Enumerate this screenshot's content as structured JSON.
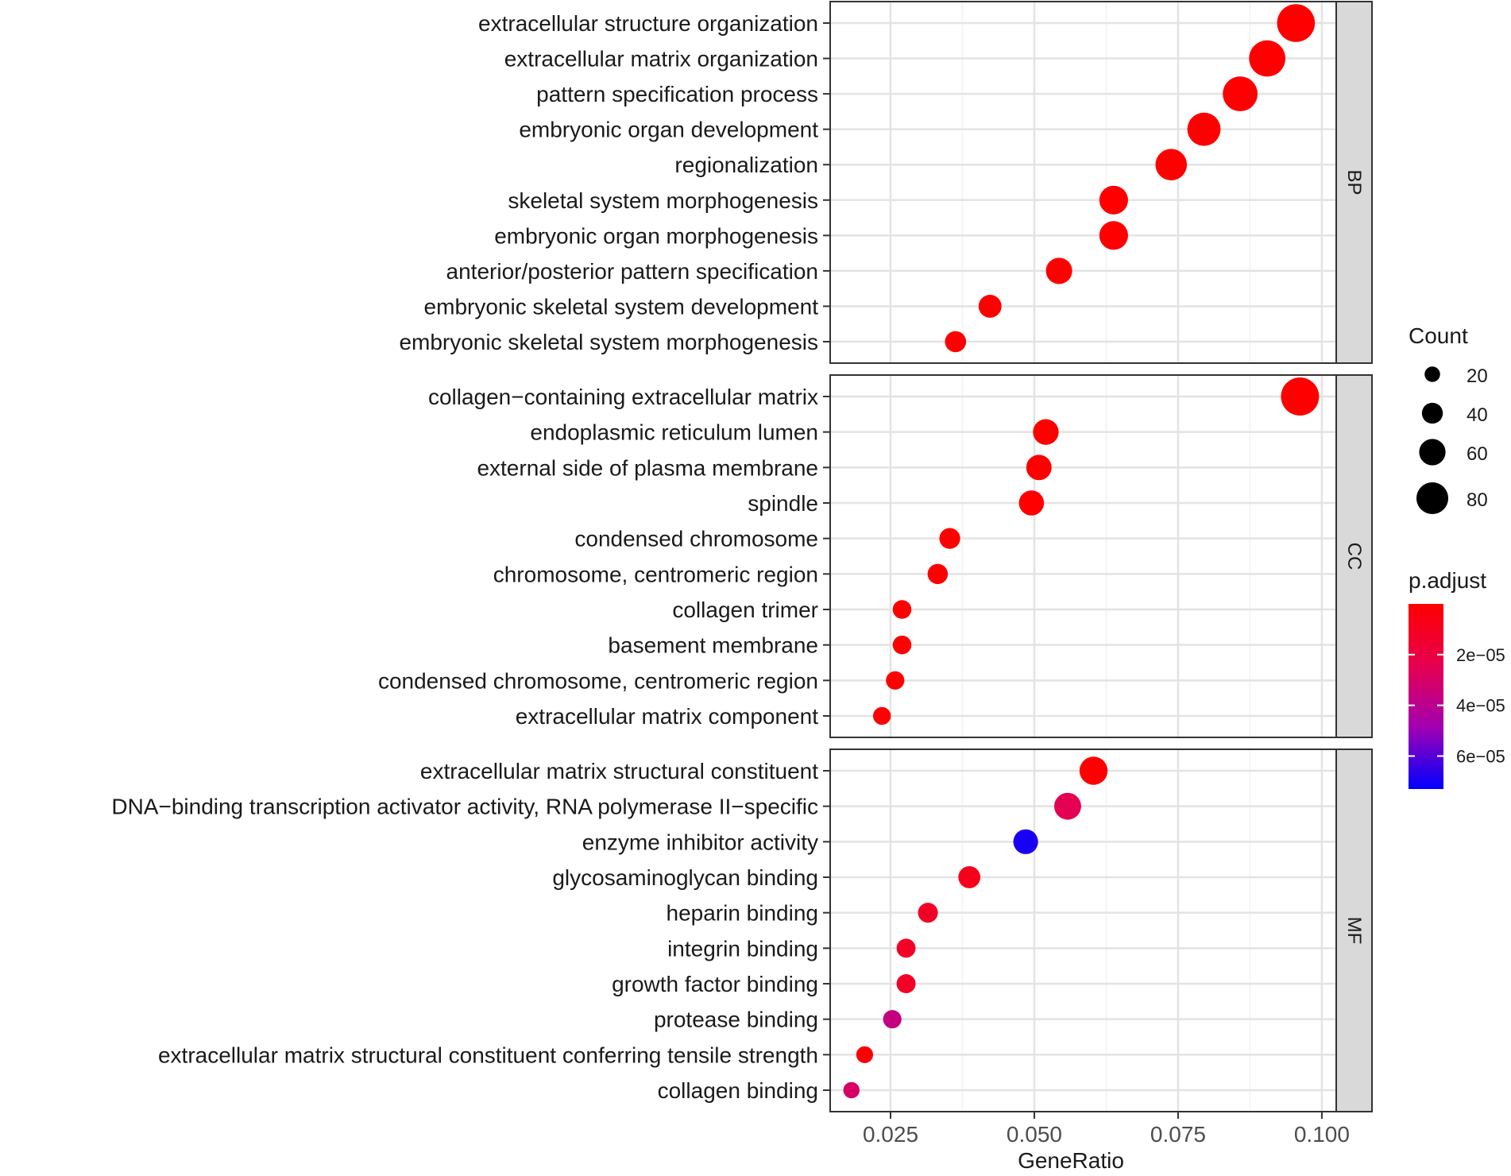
{
  "chart_data": {
    "type": "scatter",
    "xlabel": "GeneRatio",
    "xlim": [
      0.0145,
      0.1025
    ],
    "x_ticks": [
      0.025,
      0.05,
      0.075,
      0.1
    ],
    "x_tick_labels": [
      "0.025",
      "0.050",
      "0.075",
      "0.100"
    ],
    "panels": [
      {
        "name": "BP",
        "terms": [
          {
            "label": "extracellular structure organization",
            "gene_ratio": 0.0955,
            "count": 88,
            "p_adjust": 1e-12
          },
          {
            "label": "extracellular matrix organization",
            "gene_ratio": 0.0905,
            "count": 83,
            "p_adjust": 1e-12
          },
          {
            "label": "pattern specification process",
            "gene_ratio": 0.0858,
            "count": 78,
            "p_adjust": 1e-12
          },
          {
            "label": "embryonic organ development",
            "gene_ratio": 0.0795,
            "count": 73,
            "p_adjust": 1e-12
          },
          {
            "label": "regionalization",
            "gene_ratio": 0.0738,
            "count": 67,
            "p_adjust": 1e-12
          },
          {
            "label": "skeletal system morphogenesis",
            "gene_ratio": 0.0638,
            "count": 58,
            "p_adjust": 1e-12
          },
          {
            "label": "embryonic organ morphogenesis",
            "gene_ratio": 0.0638,
            "count": 58,
            "p_adjust": 1e-12
          },
          {
            "label": "anterior/posterior pattern specification",
            "gene_ratio": 0.0543,
            "count": 50,
            "p_adjust": 1e-12
          },
          {
            "label": "embryonic skeletal system development",
            "gene_ratio": 0.0423,
            "count": 39,
            "p_adjust": 1e-12
          },
          {
            "label": "embryonic skeletal system morphogenesis",
            "gene_ratio": 0.0363,
            "count": 33,
            "p_adjust": 1e-12
          }
        ]
      },
      {
        "name": "CC",
        "terms": [
          {
            "label": "collagen−containing extracellular matrix",
            "gene_ratio": 0.0962,
            "count": 89,
            "p_adjust": 1e-12
          },
          {
            "label": "endoplasmic reticulum lumen",
            "gene_ratio": 0.052,
            "count": 48,
            "p_adjust": 1e-12
          },
          {
            "label": "external side of plasma membrane",
            "gene_ratio": 0.0508,
            "count": 47,
            "p_adjust": 1e-12
          },
          {
            "label": "spindle",
            "gene_ratio": 0.0495,
            "count": 46,
            "p_adjust": 1e-12
          },
          {
            "label": "condensed chromosome",
            "gene_ratio": 0.0353,
            "count": 32,
            "p_adjust": 1e-12
          },
          {
            "label": "chromosome, centromeric region",
            "gene_ratio": 0.0332,
            "count": 30,
            "p_adjust": 1e-12
          },
          {
            "label": "collagen trimer",
            "gene_ratio": 0.027,
            "count": 25,
            "p_adjust": 1e-12
          },
          {
            "label": "basement membrane",
            "gene_ratio": 0.027,
            "count": 25,
            "p_adjust": 1e-12
          },
          {
            "label": "condensed chromosome, centromeric region",
            "gene_ratio": 0.0258,
            "count": 24,
            "p_adjust": 1e-12
          },
          {
            "label": "extracellular matrix component",
            "gene_ratio": 0.0235,
            "count": 22,
            "p_adjust": 1e-12
          }
        ]
      },
      {
        "name": "MF",
        "terms": [
          {
            "label": "extracellular matrix structural constituent",
            "gene_ratio": 0.0603,
            "count": 56,
            "p_adjust": 1e-12
          },
          {
            "label": "DNA−binding transcription activator activity, RNA polymerase II−specific",
            "gene_ratio": 0.0558,
            "count": 52,
            "p_adjust": 2.5e-05
          },
          {
            "label": "enzyme inhibitor activity",
            "gene_ratio": 0.0485,
            "count": 45,
            "p_adjust": 6.9e-05
          },
          {
            "label": "glycosaminoglycan binding",
            "gene_ratio": 0.0387,
            "count": 36,
            "p_adjust": 8e-06
          },
          {
            "label": "heparin binding",
            "gene_ratio": 0.0315,
            "count": 29,
            "p_adjust": 1.2e-05
          },
          {
            "label": "integrin binding",
            "gene_ratio": 0.0277,
            "count": 26,
            "p_adjust": 1.2e-05
          },
          {
            "label": "growth factor binding",
            "gene_ratio": 0.0277,
            "count": 26,
            "p_adjust": 1.2e-05
          },
          {
            "label": "protease binding",
            "gene_ratio": 0.0253,
            "count": 24,
            "p_adjust": 3.6e-05
          },
          {
            "label": "extracellular matrix structural constituent conferring tensile strength",
            "gene_ratio": 0.0205,
            "count": 19,
            "p_adjust": 2e-06
          },
          {
            "label": "collagen binding",
            "gene_ratio": 0.0182,
            "count": 17,
            "p_adjust": 3e-05
          }
        ]
      }
    ],
    "size_legend": {
      "title": "Count",
      "values": [
        20,
        40,
        60,
        80
      ],
      "labels": [
        "20",
        "40",
        "60",
        "80"
      ]
    },
    "color_legend": {
      "title": "p.adjust",
      "range": [
        0,
        7.3e-05
      ],
      "ticks": [
        2e-05,
        4e-05,
        6e-05
      ],
      "tick_labels": [
        "2e−05",
        "4e−05",
        "6e−05"
      ],
      "low_color": "#ff0000",
      "high_color": "#0000ff"
    },
    "grid": true,
    "legend_position": "right"
  }
}
